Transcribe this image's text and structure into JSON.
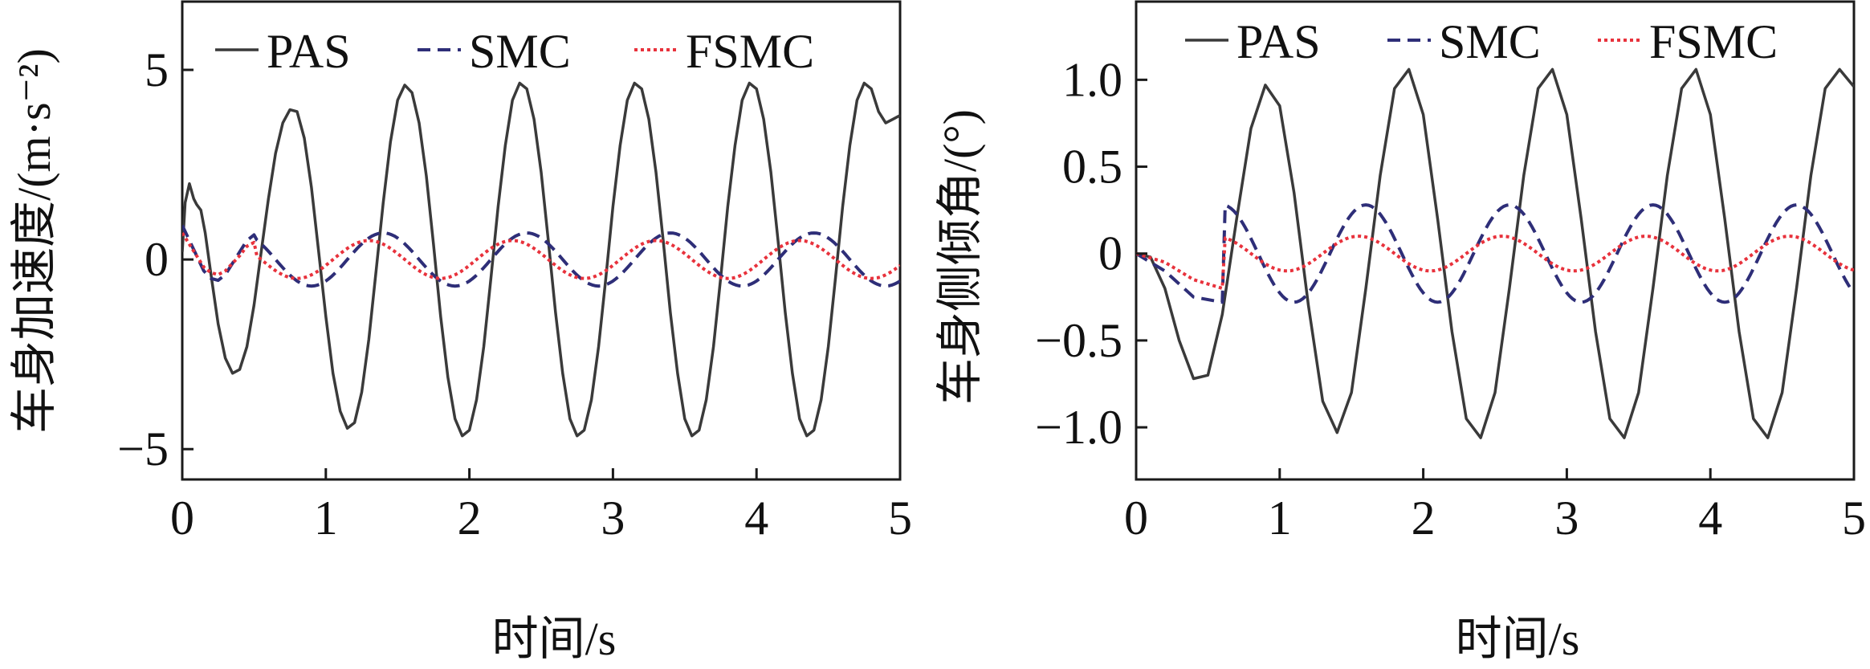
{
  "chart_data": [
    {
      "type": "line",
      "ylabel": "车身加速度/(m·s⁻²)",
      "xlabel": "时间/s",
      "xlim": [
        0,
        5
      ],
      "ylim": [
        -5.8,
        6.8
      ],
      "xticks": [
        "0",
        "1",
        "2",
        "3",
        "4",
        "5"
      ],
      "yticks": [
        "5",
        "0",
        "−5"
      ],
      "ytick_values": [
        5,
        0,
        -5
      ],
      "legend_position": "top",
      "grid": false,
      "series": [
        {
          "name": "PAS",
          "color": "#3a3a3a",
          "style": "solid",
          "x": [
            0.0,
            0.02,
            0.05,
            0.08,
            0.1,
            0.13,
            0.16,
            0.2,
            0.25,
            0.3,
            0.35,
            0.4,
            0.45,
            0.5,
            0.55,
            0.6,
            0.65,
            0.7,
            0.75,
            0.8,
            0.85,
            0.9,
            0.95,
            1.0,
            1.05,
            1.1,
            1.15,
            1.2,
            1.25,
            1.3,
            1.35,
            1.4,
            1.45,
            1.5,
            1.55,
            1.6,
            1.65,
            1.7,
            1.75,
            1.8,
            1.85,
            1.9,
            1.95,
            2.0,
            2.05,
            2.1,
            2.15,
            2.2,
            2.25,
            2.3,
            2.35,
            2.4,
            2.45,
            2.5,
            2.55,
            2.6,
            2.65,
            2.7,
            2.75,
            2.8,
            2.85,
            2.9,
            2.95,
            3.0,
            3.05,
            3.1,
            3.15,
            3.2,
            3.25,
            3.3,
            3.35,
            3.4,
            3.45,
            3.5,
            3.55,
            3.6,
            3.65,
            3.7,
            3.75,
            3.8,
            3.85,
            3.9,
            3.95,
            4.0,
            4.05,
            4.1,
            4.15,
            4.2,
            4.25,
            4.3,
            4.35,
            4.4,
            4.45,
            4.5,
            4.55,
            4.6,
            4.65,
            4.7,
            4.75,
            4.8,
            4.85,
            4.9,
            4.95,
            5.0
          ],
          "y": [
            0.2,
            1.5,
            2.0,
            1.6,
            1.45,
            1.3,
            0.7,
            -0.4,
            -1.7,
            -2.6,
            -3.0,
            -2.9,
            -2.3,
            -1.2,
            0.2,
            1.6,
            2.8,
            3.6,
            3.95,
            3.9,
            3.2,
            1.9,
            0.2,
            -1.5,
            -3.0,
            -4.0,
            -4.45,
            -4.3,
            -3.5,
            -2.1,
            -0.3,
            1.5,
            3.1,
            4.2,
            4.6,
            4.4,
            3.6,
            2.2,
            0.4,
            -1.5,
            -3.1,
            -4.2,
            -4.65,
            -4.5,
            -3.7,
            -2.3,
            -0.5,
            1.4,
            3.0,
            4.2,
            4.65,
            4.5,
            3.7,
            2.3,
            0.5,
            -1.4,
            -3.0,
            -4.2,
            -4.65,
            -4.5,
            -3.7,
            -2.3,
            -0.5,
            1.4,
            3.0,
            4.2,
            4.65,
            4.5,
            3.7,
            2.3,
            0.5,
            -1.4,
            -3.0,
            -4.2,
            -4.65,
            -4.5,
            -3.7,
            -2.3,
            -0.5,
            1.4,
            3.0,
            4.2,
            4.65,
            4.5,
            3.7,
            2.3,
            0.5,
            -1.4,
            -3.0,
            -4.2,
            -4.65,
            -4.5,
            -3.7,
            -2.3,
            -0.5,
            1.4,
            3.0,
            4.2,
            4.65,
            4.5,
            3.9,
            3.6,
            3.7,
            3.8
          ]
        },
        {
          "name": "SMC",
          "color": "#2e2e78",
          "style": "dashed",
          "amplitude": 0.7,
          "period": 1.0,
          "phase": 0.15,
          "x": [
            0.0,
            0.05,
            0.1,
            0.15,
            0.2,
            0.25,
            0.3,
            0.35,
            0.4,
            0.45,
            0.5
          ],
          "y": [
            0.9,
            0.5,
            0.1,
            -0.3,
            -0.5,
            -0.55,
            -0.4,
            -0.1,
            0.2,
            0.5,
            0.65
          ]
        },
        {
          "name": "FSMC",
          "color": "#e8323c",
          "style": "dotted",
          "amplitude": 0.5,
          "period": 1.0,
          "phase": 0.05,
          "x": [
            0.0,
            0.05,
            0.1,
            0.15,
            0.2,
            0.25,
            0.3,
            0.35,
            0.4,
            0.45,
            0.5
          ],
          "y": [
            0.7,
            0.4,
            0.1,
            -0.2,
            -0.35,
            -0.4,
            -0.3,
            -0.1,
            0.1,
            0.35,
            0.45
          ]
        }
      ]
    },
    {
      "type": "line",
      "ylabel": "车身侧倾角/(°)",
      "xlabel": "时间/s",
      "xlim": [
        0,
        5
      ],
      "ylim": [
        -1.3,
        1.45
      ],
      "xticks": [
        "0",
        "1",
        "2",
        "3",
        "4",
        "5"
      ],
      "yticks": [
        "1.0",
        "0.5",
        "0",
        "−0.5",
        "−1.0"
      ],
      "ytick_values": [
        1.0,
        0.5,
        0,
        -0.5,
        -1.0
      ],
      "legend_position": "top",
      "grid": false,
      "series": [
        {
          "name": "PAS",
          "color": "#3a3a3a",
          "style": "solid",
          "x": [
            0.0,
            0.1,
            0.2,
            0.3,
            0.4,
            0.5,
            0.6,
            0.7,
            0.8,
            0.9,
            1.0,
            1.1,
            1.2,
            1.3,
            1.4,
            1.5,
            1.6,
            1.7,
            1.8,
            1.9,
            2.0,
            2.1,
            2.2,
            2.3,
            2.4,
            2.5,
            2.6,
            2.7,
            2.8,
            2.9,
            3.0,
            3.1,
            3.2,
            3.3,
            3.4,
            3.5,
            3.6,
            3.7,
            3.8,
            3.9,
            4.0,
            4.1,
            4.2,
            4.3,
            4.4,
            4.5,
            4.6,
            4.7,
            4.8,
            4.9,
            5.0
          ],
          "y": [
            0.0,
            -0.02,
            -0.2,
            -0.5,
            -0.72,
            -0.7,
            -0.35,
            0.2,
            0.72,
            0.97,
            0.85,
            0.35,
            -0.3,
            -0.85,
            -1.03,
            -0.8,
            -0.2,
            0.45,
            0.95,
            1.06,
            0.8,
            0.2,
            -0.45,
            -0.95,
            -1.06,
            -0.8,
            -0.2,
            0.45,
            0.95,
            1.06,
            0.8,
            0.2,
            -0.45,
            -0.95,
            -1.06,
            -0.8,
            -0.2,
            0.45,
            0.95,
            1.06,
            0.8,
            0.2,
            -0.45,
            -0.95,
            -1.06,
            -0.8,
            -0.2,
            0.45,
            0.95,
            1.06,
            0.96
          ]
        },
        {
          "name": "SMC",
          "color": "#2e2e78",
          "style": "dashed",
          "amplitude": 0.28,
          "period": 1.0,
          "phase": 0.35,
          "x": [
            0.0,
            0.2,
            0.4,
            0.6
          ],
          "y": [
            0.0,
            -0.1,
            -0.25,
            -0.28
          ]
        },
        {
          "name": "FSMC",
          "color": "#e8323c",
          "style": "dotted",
          "amplitude": 0.1,
          "period": 1.0,
          "phase": 0.3,
          "x": [
            0.0,
            0.2,
            0.4,
            0.6
          ],
          "y": [
            0.0,
            -0.05,
            -0.15,
            -0.2
          ]
        }
      ]
    }
  ]
}
